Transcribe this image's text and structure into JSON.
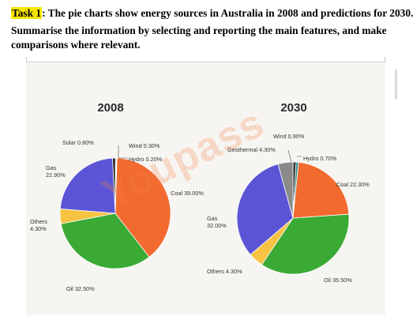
{
  "header": {
    "task_label": "Task 1",
    "task_text": ": The pie charts show energy sources in Australia in 2008 and predictions for 2030.",
    "instructions": "Summarise the information by selecting and reporting the main features, and make comparisons where relevant."
  },
  "watermark": "Youpass",
  "chart_data": [
    {
      "type": "pie",
      "title": "2008",
      "slices": [
        {
          "label": "Wind 0.30%",
          "value": 0.3,
          "color": "#333333"
        },
        {
          "label": "Hydro 0.20%",
          "value": 0.2,
          "color": "#8a8a8a"
        },
        {
          "label": "Coal 39.00%",
          "value": 39.0,
          "color": "#f26a2e"
        },
        {
          "label": "Oil 32.50%",
          "value": 32.5,
          "color": "#3aaa35"
        },
        {
          "label": "Others 4.30%",
          "value": 4.3,
          "color": "#f6c342"
        },
        {
          "label": "Gas 22.90%",
          "value": 22.9,
          "color": "#5b55d6"
        },
        {
          "label": "Solar 0.80%",
          "value": 0.8,
          "color": "#1a1a1a"
        }
      ]
    },
    {
      "type": "pie",
      "title": "2030",
      "slices": [
        {
          "label": "Wind 0.90%",
          "value": 0.9,
          "color": "#333333"
        },
        {
          "label": "Hydro 0.70%",
          "value": 0.7,
          "color": "#2a8a8a"
        },
        {
          "label": "Coal 22.30%",
          "value": 22.3,
          "color": "#f26a2e"
        },
        {
          "label": "Oil 35.50%",
          "value": 35.5,
          "color": "#3aaa35"
        },
        {
          "label": "Others 4.30%",
          "value": 4.3,
          "color": "#f6c342"
        },
        {
          "label": "Gas 32.00%",
          "value": 32.0,
          "color": "#5b55d6"
        },
        {
          "label": "Geothermal 4.30%",
          "value": 4.3,
          "color": "#8a8a8a"
        }
      ]
    }
  ]
}
